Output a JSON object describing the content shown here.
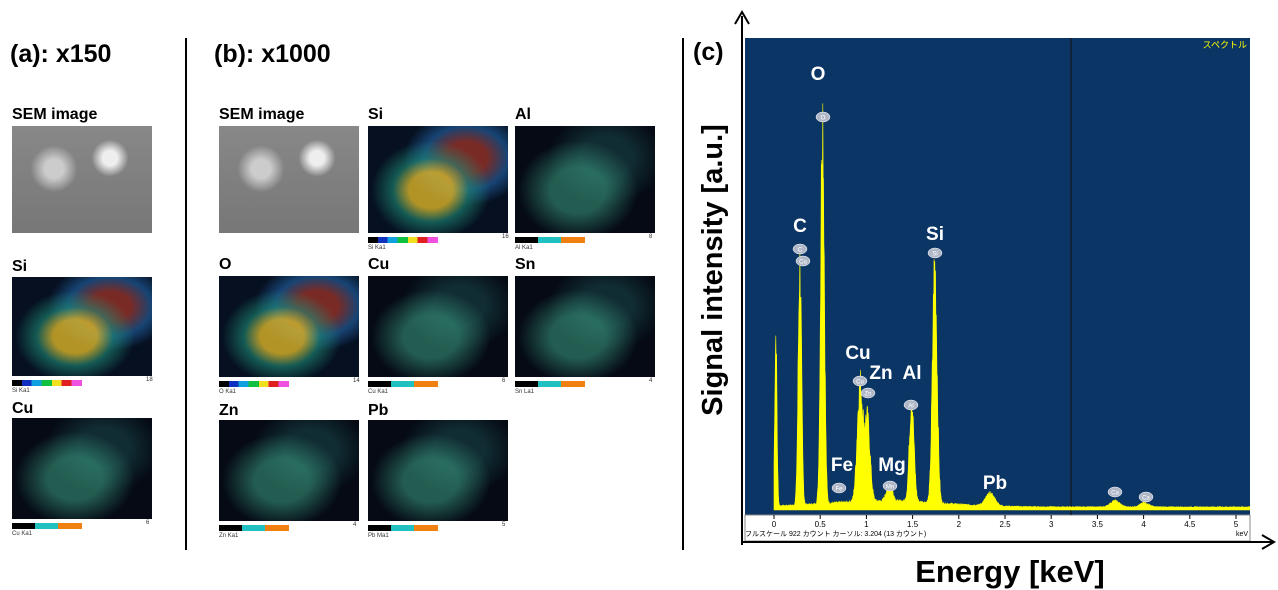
{
  "panel_a": {
    "title": "(a): x150",
    "images": [
      {
        "label": "SEM image"
      },
      {
        "label": "Si",
        "line": "Si Ka1",
        "max": "18"
      },
      {
        "label": "Cu",
        "line": "Cu Ka1",
        "max": "6"
      }
    ]
  },
  "panel_b": {
    "title": "(b): x1000",
    "images": [
      {
        "label": "SEM image"
      },
      {
        "label": "Si",
        "line": "Si Ka1",
        "max": "16"
      },
      {
        "label": "Al",
        "line": "Al Ka1",
        "max": "8"
      },
      {
        "label": "O",
        "line": "O Ka1",
        "max": "14"
      },
      {
        "label": "Cu",
        "line": "Cu Ka1",
        "max": "6"
      },
      {
        "label": "Sn",
        "line": "Sn La1",
        "max": "4"
      },
      {
        "label": "Zn",
        "line": "Zn Ka1",
        "max": "4"
      },
      {
        "label": "Pb",
        "line": "Pb Ma1",
        "max": "5"
      }
    ]
  },
  "panel_c": {
    "title": "(c)",
    "y_label": "Signal intensity [a.u.]",
    "x_label": "Energy [keV]",
    "corner": "スペクトル",
    "footer": "フルスケール 922 カウント カーソル: 3.204 (13 カウント)",
    "unit": "keV",
    "xticks": [
      0,
      0.5,
      1,
      1.5,
      2,
      2.5,
      3,
      3.5,
      4,
      4.5,
      5
    ],
    "peak_labels": [
      "O",
      "C",
      "Si",
      "Cu",
      "Zn",
      "Al",
      "Fe",
      "Mg",
      "Pb"
    ],
    "peak_tags": [
      "O",
      "C",
      "Cu",
      "Si",
      "Cu",
      "Zn",
      "Al",
      "Fe",
      "Mn",
      "Ca",
      "Ca"
    ]
  }
}
